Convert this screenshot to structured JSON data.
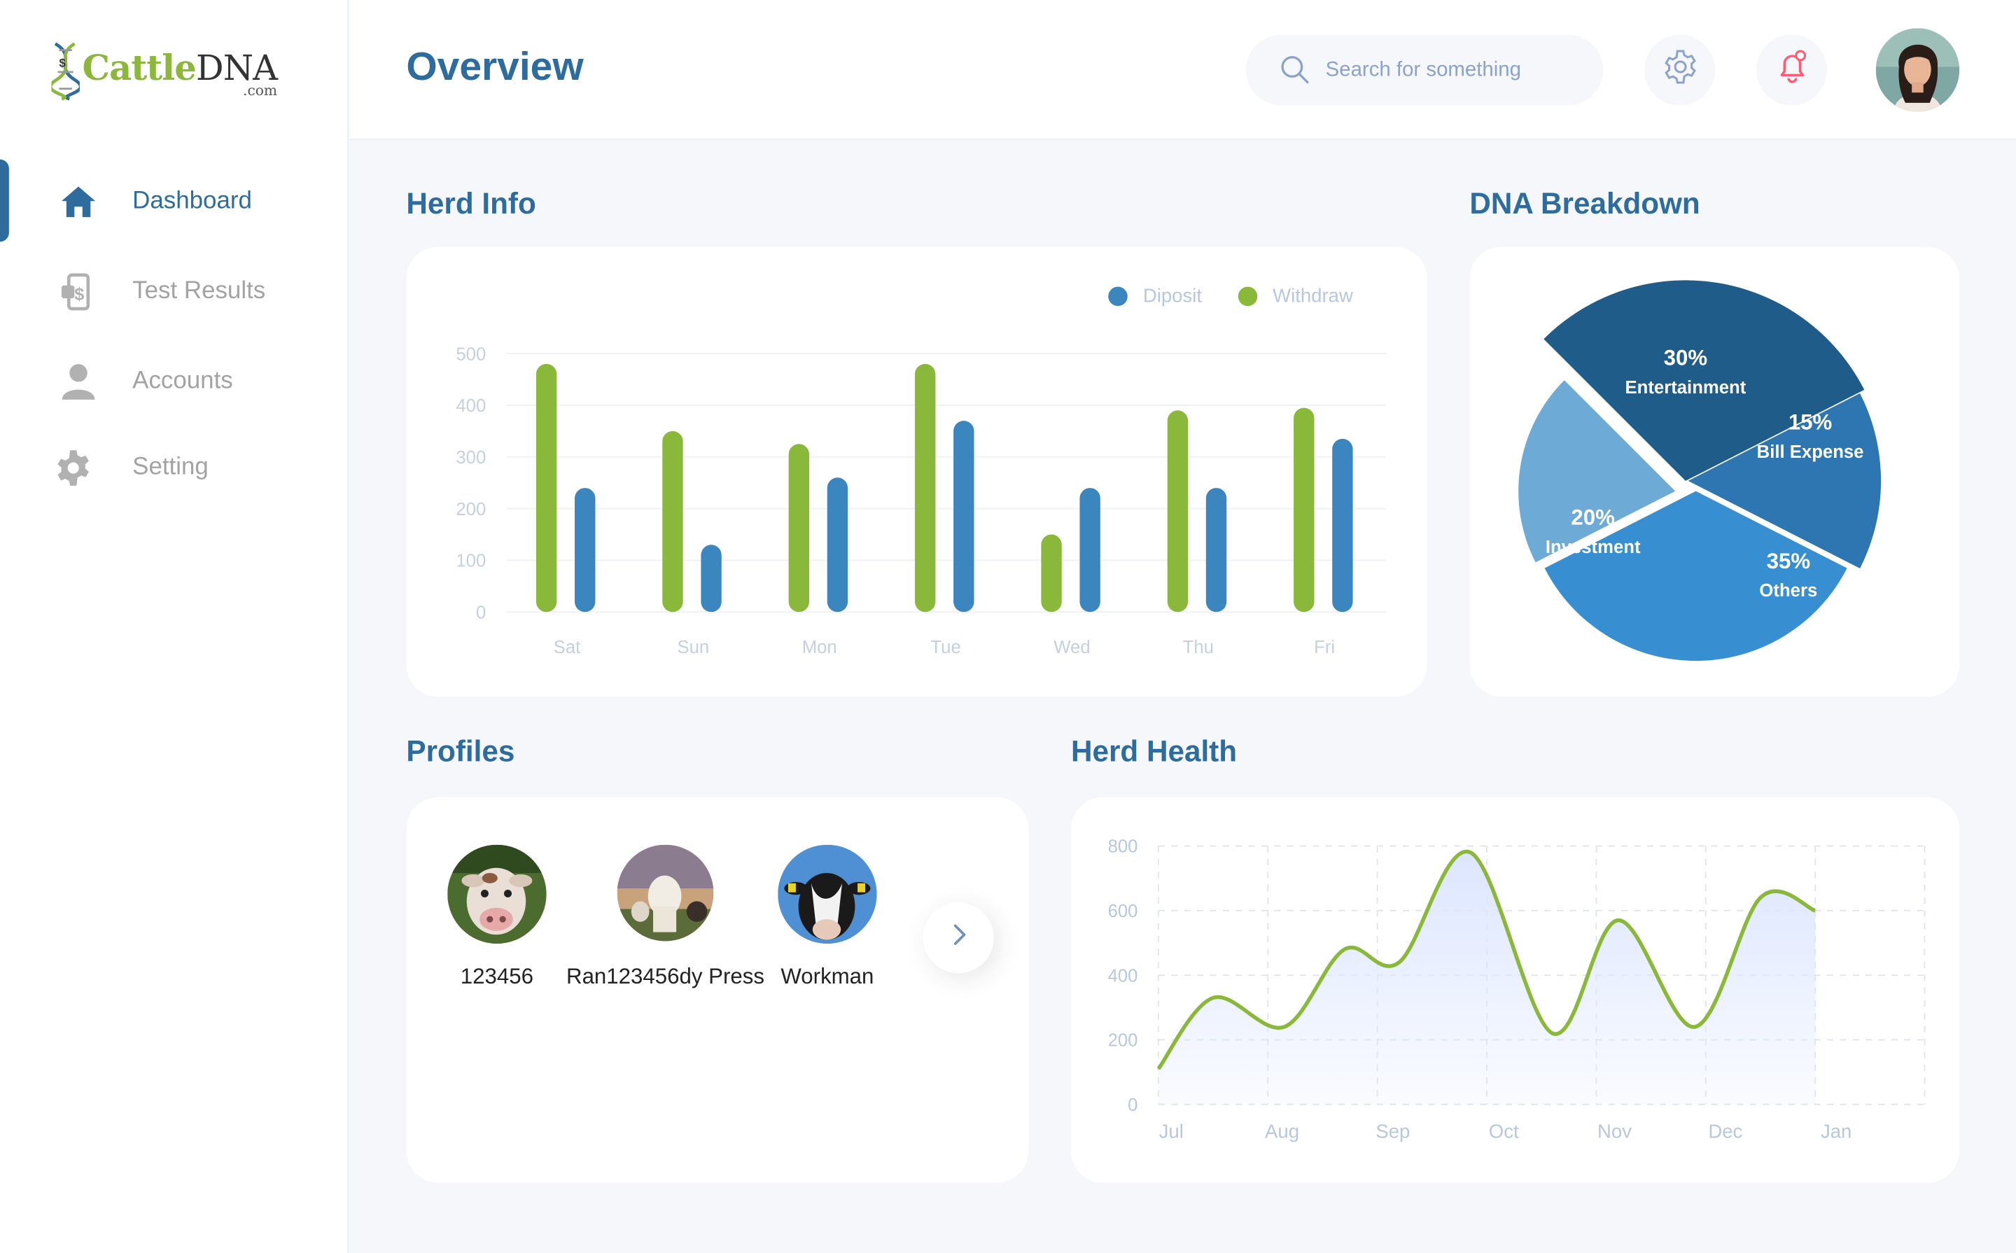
{
  "brand": {
    "word1": "Cattle",
    "word2": "DNA",
    "suffix": ".com"
  },
  "sidebar": {
    "items": [
      {
        "label": "Dashboard",
        "icon": "home-icon",
        "active": true
      },
      {
        "label": "Test Results",
        "icon": "phone-dollar-icon",
        "active": false
      },
      {
        "label": "Accounts",
        "icon": "user-icon",
        "active": false
      },
      {
        "label": "Setting",
        "icon": "gear-icon",
        "active": false
      }
    ]
  },
  "header": {
    "title": "Overview",
    "search_placeholder": "Search for something"
  },
  "sections": {
    "herd_info": "Herd Info",
    "dna_breakdown": "DNA Breakdown",
    "profiles": "Profiles",
    "herd_health": "Herd Health"
  },
  "colors": {
    "green": "#8ab83a",
    "blue": "#3b86bf",
    "title": "#2d6c9c"
  },
  "herd_info_chart": {
    "type": "bar",
    "categories": [
      "Sat",
      "Sun",
      "Mon",
      "Tue",
      "Wed",
      "Thu",
      "Fri"
    ],
    "series": [
      {
        "name": "Withdraw",
        "color": "#8ab83a",
        "values": [
          480,
          350,
          325,
          480,
          150,
          390,
          395
        ]
      },
      {
        "name": "Diposit",
        "color": "#3b86bf",
        "values": [
          240,
          130,
          260,
          370,
          240,
          240,
          335
        ]
      }
    ],
    "legend": [
      {
        "label": "Diposit",
        "color": "#3b86bf"
      },
      {
        "label": "Withdraw",
        "color": "#8ab83a"
      }
    ],
    "yticks": [
      0,
      100,
      200,
      300,
      400,
      500
    ],
    "ylim": [
      0,
      500
    ],
    "grid": true,
    "legend_position": "top-right"
  },
  "dna_breakdown_chart": {
    "type": "pie",
    "slices": [
      {
        "label": "Entertainment",
        "pct_label": "30%",
        "value": 30,
        "color": "#1f5c8a"
      },
      {
        "label": "Bill Expense",
        "pct_label": "15%",
        "value": 15,
        "color": "#2d76b2"
      },
      {
        "label": "Others",
        "pct_label": "35%",
        "value": 35,
        "color": "#378fd2"
      },
      {
        "label": "Investment",
        "pct_label": "20%",
        "value": 20,
        "color": "#6eaad6"
      }
    ]
  },
  "profiles": {
    "items": [
      {
        "name": "123456"
      },
      {
        "name": "Ran123456dy Press"
      },
      {
        "name": "Workman"
      }
    ]
  },
  "herd_health_chart": {
    "type": "area",
    "x": [
      "Jul",
      "Aug",
      "Sep",
      "Oct",
      "Nov",
      "Dec",
      "Jan"
    ],
    "points": [
      {
        "x": 0.0,
        "y": 110
      },
      {
        "x": 0.5,
        "y": 330
      },
      {
        "x": 1.15,
        "y": 240
      },
      {
        "x": 1.7,
        "y": 480
      },
      {
        "x": 2.2,
        "y": 440
      },
      {
        "x": 2.85,
        "y": 780
      },
      {
        "x": 3.6,
        "y": 220
      },
      {
        "x": 4.2,
        "y": 570
      },
      {
        "x": 4.9,
        "y": 240
      },
      {
        "x": 5.5,
        "y": 640
      },
      {
        "x": 6.0,
        "y": 600
      }
    ],
    "yticks": [
      0,
      200,
      400,
      600,
      800
    ],
    "ylim": [
      0,
      800
    ],
    "line_color": "#8ab83a",
    "fill_color": "#dde6ff",
    "grid": true
  }
}
